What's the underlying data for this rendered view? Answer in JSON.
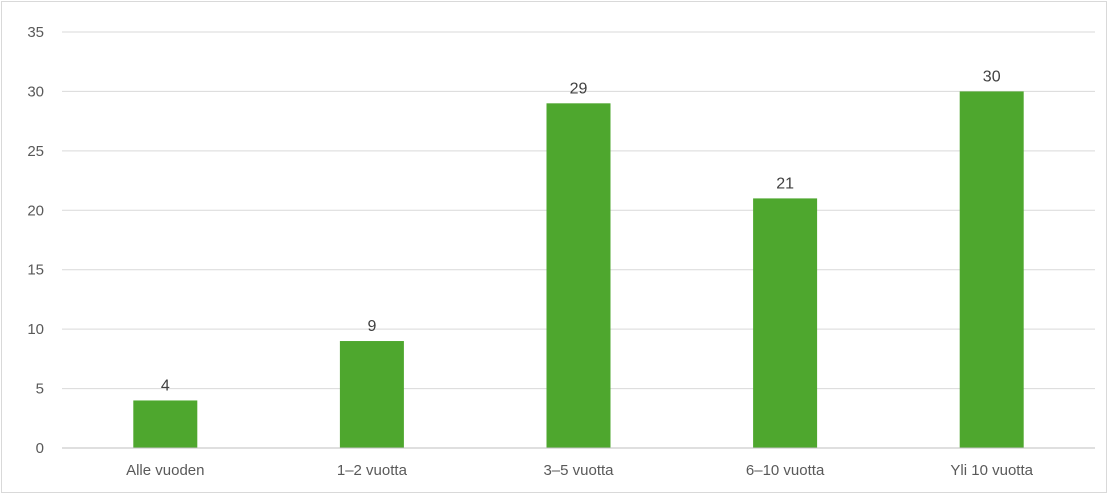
{
  "chart_data": {
    "type": "bar",
    "title": "",
    "xlabel": "",
    "ylabel": "",
    "categories": [
      "Alle vuoden",
      "1–2 vuotta",
      "3–5 vuotta",
      "6–10 vuotta",
      "Yli 10 vuotta"
    ],
    "values": [
      4,
      9,
      29,
      21,
      30
    ],
    "ylim": [
      0,
      35
    ],
    "yticks": [
      0,
      5,
      10,
      15,
      20,
      25,
      30,
      35
    ],
    "grid": true,
    "legend": "none",
    "data_labels": true,
    "bar_color": "#4ea72e"
  }
}
